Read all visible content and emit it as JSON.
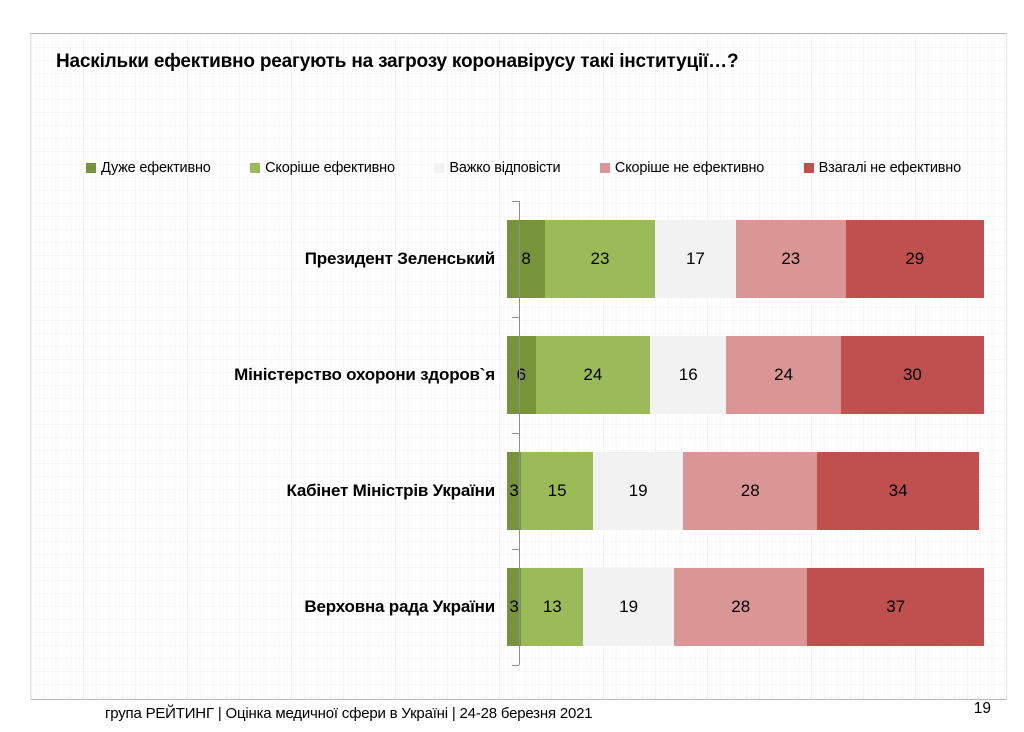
{
  "title": "Наскільки ефективно реагують на загрозу коронавірусу такі інституції…?",
  "footer": {
    "text": "група РЕЙТИНГ  |  Оцінка медичної сфери в Україні  | 24-28 березня 2021",
    "page_number": "19"
  },
  "chart_data": {
    "type": "bar",
    "orientation": "horizontal",
    "stacked": true,
    "title": "Наскільки ефективно реагують на загрозу коронавірусу такі інституції…?",
    "xlim": [
      0,
      100
    ],
    "unit": "percent",
    "legend_position": "top",
    "value_labels": "inside",
    "categories": [
      "Президент Зеленський",
      "Міністерство охорони здоров`я",
      "Кабінет Міністрів України",
      "Верховна рада України"
    ],
    "series": [
      {
        "name": "Дуже ефективно",
        "color": "#77933C",
        "values": [
          8,
          6,
          3,
          3
        ]
      },
      {
        "name": "Скоріше ефективно",
        "color": "#9BBB59",
        "values": [
          23,
          24,
          15,
          13
        ]
      },
      {
        "name": "Важко відповісти",
        "color": "#F2F2F2",
        "values": [
          17,
          16,
          19,
          19
        ]
      },
      {
        "name": "Скоріше не ефективно",
        "color": "#D99694",
        "values": [
          23,
          24,
          28,
          28
        ]
      },
      {
        "name": "Взагалі не ефективно",
        "color": "#C0504D",
        "values": [
          29,
          30,
          34,
          37
        ]
      }
    ],
    "colors": {
      "axis": "#8f8f8f",
      "value_label": "#000000"
    }
  }
}
